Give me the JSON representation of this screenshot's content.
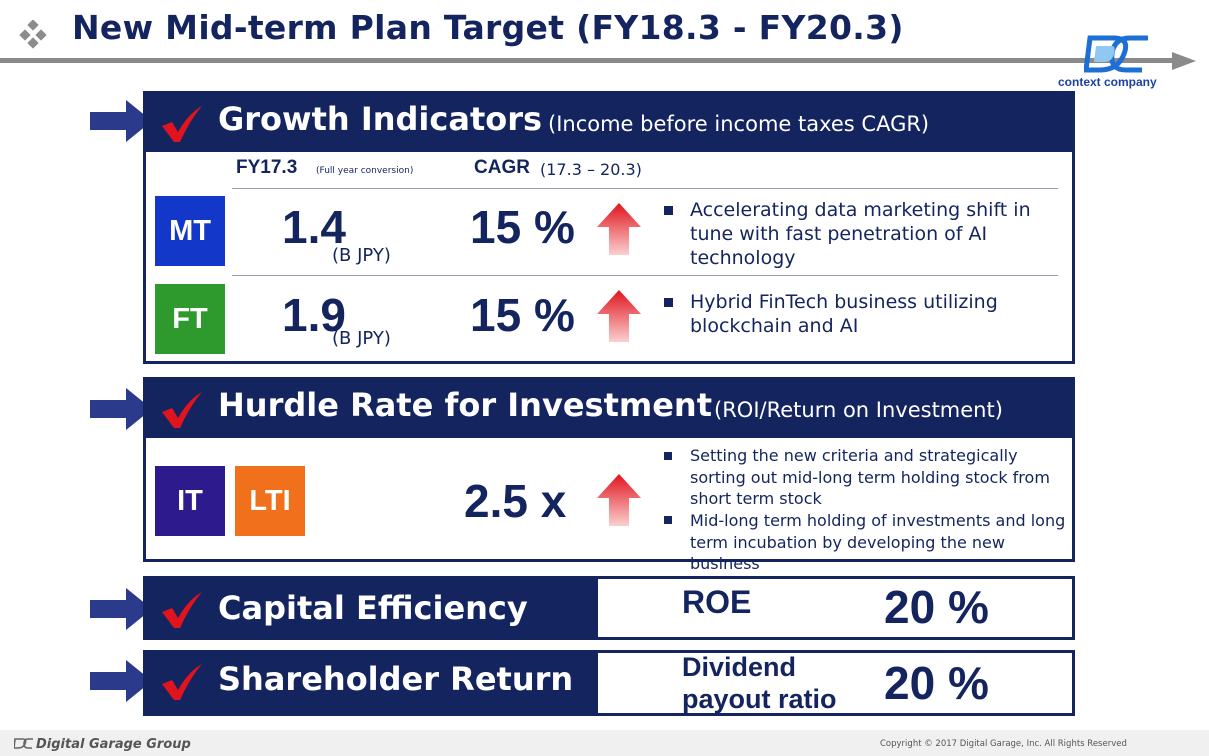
{
  "header": {
    "title": "New Mid-term Plan Target  (FY18.3 - FY20.3)",
    "logo_text": "context company"
  },
  "growth": {
    "title": "Growth Indicators",
    "subtitle": "(Income before income taxes CAGR)",
    "col1_label": "FY17.3",
    "col1_note": "(Full year conversion)",
    "col2_label": "CAGR",
    "col2_note": "(17.3 – 20.3)",
    "rows": [
      {
        "code": "MT",
        "value": "1.4",
        "unit": "(B JPY)",
        "cagr": "15 %",
        "text": "Accelerating data marketing shift in tune with fast penetration of AI technology"
      },
      {
        "code": "FT",
        "value": "1.9",
        "unit": "(B JPY)",
        "cagr": "15 %",
        "text": "Hybrid FinTech business utilizing blockchain and AI"
      }
    ]
  },
  "hurdle": {
    "title": "Hurdle Rate for Investment",
    "subtitle": "(ROI/Return on Investment)",
    "codes": [
      "IT",
      "LTI"
    ],
    "value": "2.5 x",
    "bullets": [
      "Setting the new criteria and strategically sorting out mid-long term holding stock from short term stock",
      "Mid-long term holding of investments and long term incubation by developing the new business"
    ]
  },
  "capital": {
    "title": "Capital Efficiency",
    "metric": "ROE",
    "value": "20 %"
  },
  "shareholder": {
    "title": "Shareholder Return",
    "metric_line1": "Dividend",
    "metric_line2": "payout ratio",
    "value": "20 %"
  },
  "footer": {
    "brand": "Digital Garage Group",
    "copyright": "Copyright © 2017 Digital Garage, Inc. All Rights Reserved"
  },
  "colors": {
    "navy": "#14245e",
    "mt": "#1338c9",
    "ft": "#2e9a2e",
    "it": "#2d1a8c",
    "lti": "#f0701c",
    "check": "#e0141e",
    "side_arrow": "#2c3a8c"
  },
  "icons": {
    "title": "diamond-cluster-icon",
    "check": "red-checkmark-icon",
    "pointer": "right-arrow-icon",
    "trend": "red-up-arrow-icon"
  }
}
